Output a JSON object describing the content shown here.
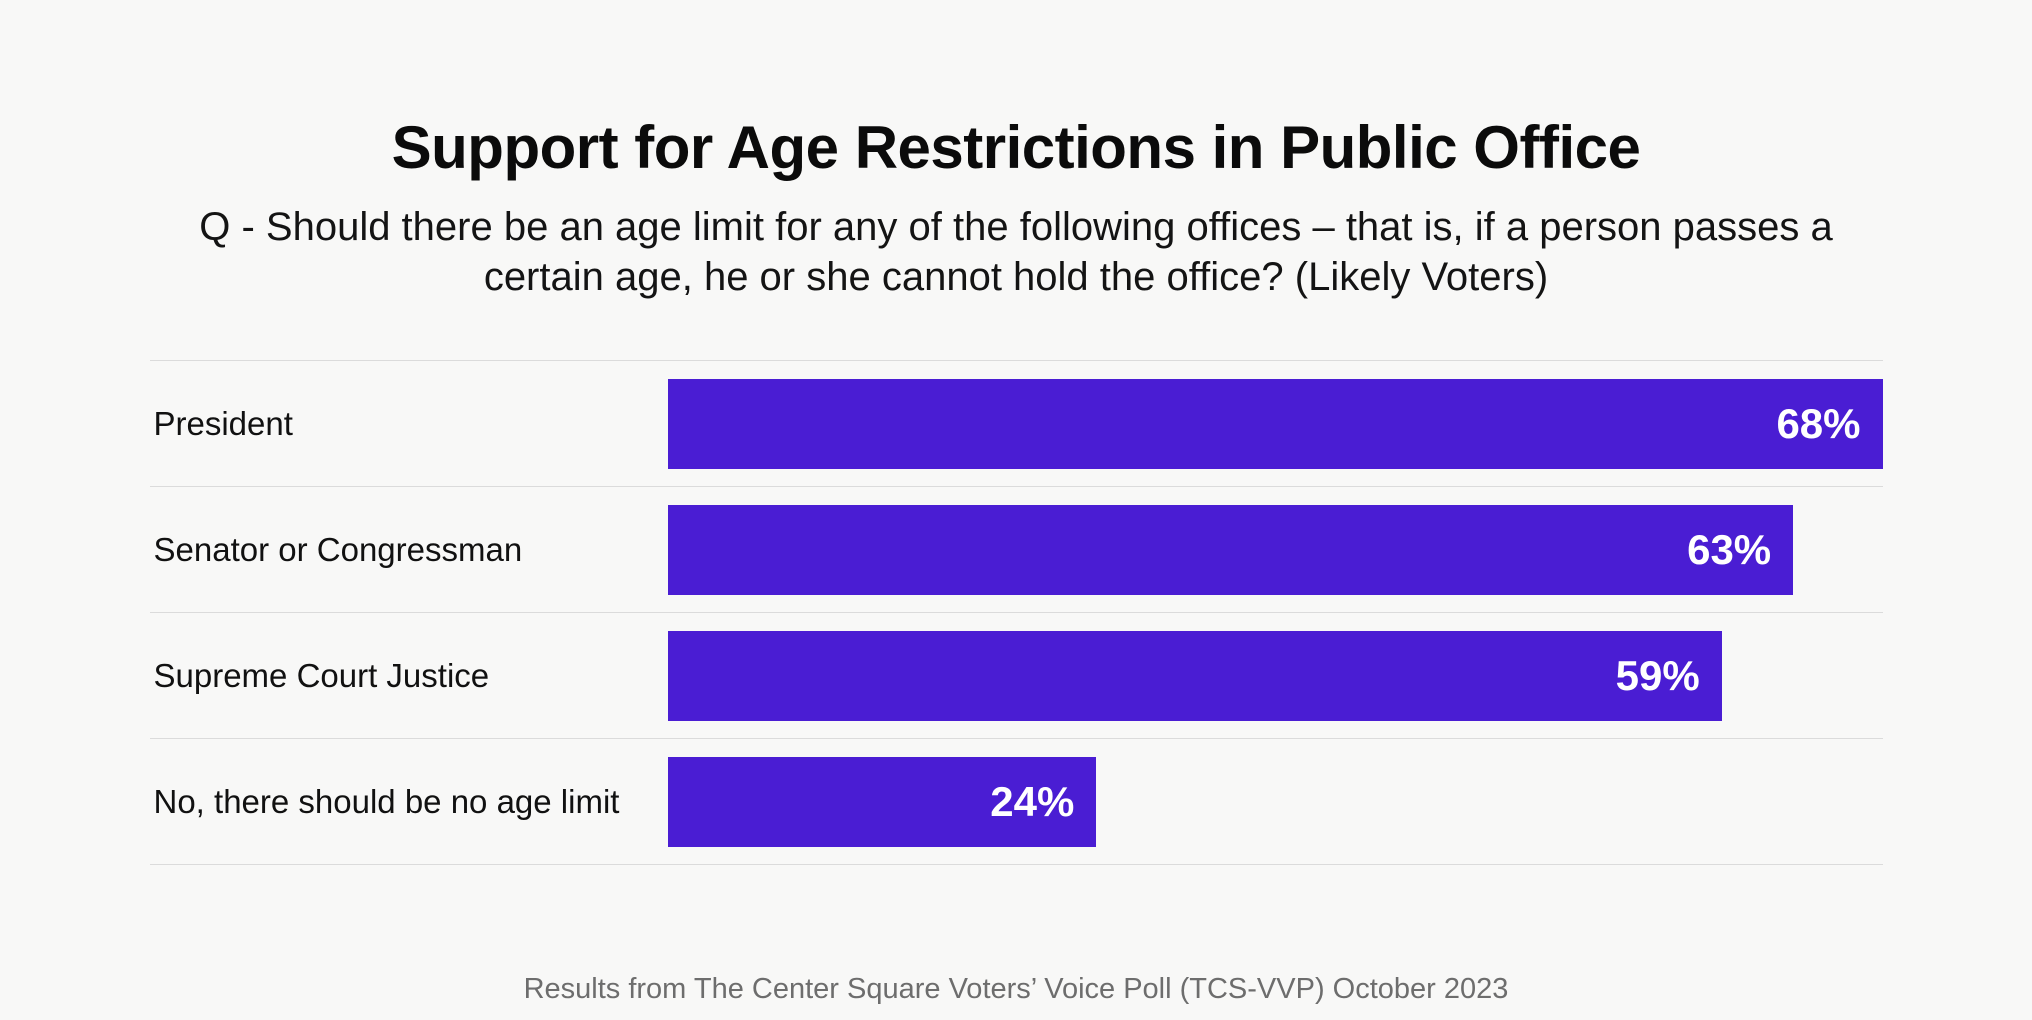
{
  "header": {
    "title": "Support for Age Restrictions in Public Office",
    "subtitle": "Q - Should there be an age limit for any of the following offices – that is, if a person passes a certain age, he or she cannot hold the office? (Likely Voters)"
  },
  "footer": {
    "source_note": "Results from The Center Square Voters’ Voice Poll (TCS-VVP) October 2023"
  },
  "colors": {
    "bar": "#4a1dd3",
    "background": "#f8f8f7",
    "divider": "#dbdbdb",
    "value_text": "#ffffff",
    "footer_text": "#6d6d6d"
  },
  "chart_data": {
    "type": "bar",
    "orientation": "horizontal",
    "title": "Support for Age Restrictions in Public Office",
    "subtitle": "Q - Should there be an age limit for any of the following offices – that is, if a person passes a certain age, he or she cannot hold the office? (Likely Voters)",
    "categories": [
      "President",
      "Senator or Congressman",
      "Supreme Court Justice",
      "No, there should be no age limit"
    ],
    "values": [
      68,
      63,
      59,
      24
    ],
    "display_values": [
      "68%",
      "63%",
      "59%",
      "24%"
    ],
    "value_suffix": "%",
    "xlim": [
      0,
      68
    ],
    "grid": false,
    "legend": "none",
    "value_label_position": "inside-end",
    "footer": "Results from The Center Square Voters’ Voice Poll (TCS-VVP) October 2023"
  }
}
